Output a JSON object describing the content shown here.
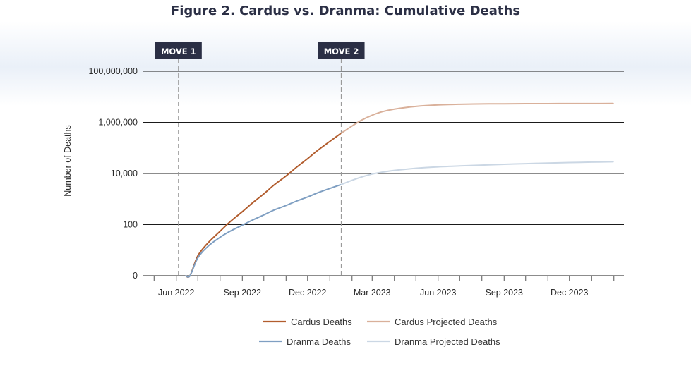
{
  "title": "Figure 2. Cardus vs. Dranma: Cumulative Deaths",
  "colors": {
    "cardus": "#b25d2e",
    "cardus_projected": "#d9b09a",
    "dranma": "#7f9fc2",
    "dranma_projected": "#cbd7e4",
    "annotation_bg": "#2b2f45",
    "gridline": "#1a1a1a",
    "vline": "#9a9a9a"
  },
  "chart_data": {
    "type": "line",
    "title": "Figure 2. Cardus vs. Dranma: Cumulative Deaths",
    "xlabel": "",
    "ylabel": "Number of Deaths",
    "y_scale": "log",
    "y_ticks": [
      {
        "value": 0,
        "label": "0"
      },
      {
        "value": 100,
        "label": "100"
      },
      {
        "value": 10000,
        "label": "10,000"
      },
      {
        "value": 1000000,
        "label": "1,000,000"
      },
      {
        "value": 100000000,
        "label": "100,000,000"
      }
    ],
    "xlim": [
      "2022-04-15",
      "2024-02-15"
    ],
    "x_minor_ticks": [
      "2022-05-01",
      "2022-06-01",
      "2022-07-01",
      "2022-08-01",
      "2022-09-01",
      "2022-10-01",
      "2022-11-01",
      "2022-12-01",
      "2023-01-01",
      "2023-02-01",
      "2023-03-01",
      "2023-04-01",
      "2023-05-01",
      "2023-06-01",
      "2023-07-01",
      "2023-08-01",
      "2023-09-01",
      "2023-10-01",
      "2023-11-01",
      "2023-12-01",
      "2024-01-01",
      "2024-02-01"
    ],
    "x_ticks": [
      {
        "date": "2022-06-01",
        "label": "Jun 2022"
      },
      {
        "date": "2022-09-01",
        "label": "Sep 2022"
      },
      {
        "date": "2022-12-01",
        "label": "Dec 2022"
      },
      {
        "date": "2023-03-01",
        "label": "Mar 2023"
      },
      {
        "date": "2023-06-01",
        "label": "Jun 2023"
      },
      {
        "date": "2023-09-01",
        "label": "Sep 2023"
      },
      {
        "date": "2023-12-01",
        "label": "Dec 2023"
      }
    ],
    "grid": "horizontal",
    "annotations": [
      {
        "label": "MOVE 1",
        "date": "2022-06-04"
      },
      {
        "label": "MOVE 2",
        "date": "2023-01-17"
      }
    ],
    "legend": {
      "position": "bottom",
      "items": [
        {
          "series": 0,
          "label": "Cardus Deaths"
        },
        {
          "series": 1,
          "label": "Cardus Projected Deaths"
        },
        {
          "series": 2,
          "label": "Dranma Deaths"
        },
        {
          "series": 3,
          "label": "Dranma Projected Deaths"
        }
      ]
    },
    "series": [
      {
        "name": "Cardus Deaths",
        "color": "#b25d2e",
        "x": [
          "2022-06-14",
          "2022-06-20",
          "2022-07-01",
          "2022-07-15",
          "2022-08-01",
          "2022-08-15",
          "2022-09-01",
          "2022-09-15",
          "2022-10-01",
          "2022-10-15",
          "2022-11-01",
          "2022-11-15",
          "2022-12-01",
          "2022-12-15",
          "2023-01-01",
          "2023-01-17"
        ],
        "y": [
          0.05,
          1,
          6,
          19,
          55,
          130,
          320,
          700,
          1600,
          3500,
          8000,
          17000,
          38000,
          80000,
          180000,
          380000
        ]
      },
      {
        "name": "Cardus Projected Deaths",
        "color": "#d9b09a",
        "x": [
          "2023-01-17",
          "2023-02-01",
          "2023-02-15",
          "2023-03-01",
          "2023-03-15",
          "2023-04-01",
          "2023-05-01",
          "2023-06-01",
          "2023-07-01",
          "2023-08-01",
          "2023-09-01",
          "2023-10-01",
          "2023-11-01",
          "2023-12-01",
          "2024-01-01",
          "2024-01-31"
        ],
        "y": [
          380000,
          720000,
          1250000,
          1900000,
          2600000,
          3300000,
          4200000,
          4800000,
          5100000,
          5250000,
          5320000,
          5370000,
          5400000,
          5420000,
          5440000,
          5450000
        ]
      },
      {
        "name": "Dranma Deaths",
        "color": "#7f9fc2",
        "x": [
          "2022-06-14",
          "2022-06-20",
          "2022-07-01",
          "2022-07-15",
          "2022-08-01",
          "2022-08-15",
          "2022-09-01",
          "2022-09-15",
          "2022-10-01",
          "2022-10-15",
          "2022-11-01",
          "2022-11-15",
          "2022-12-01",
          "2022-12-15",
          "2023-01-01",
          "2023-01-17"
        ],
        "y": [
          0.05,
          1,
          5,
          14,
          32,
          55,
          95,
          150,
          240,
          370,
          560,
          820,
          1200,
          1750,
          2600,
          3700
        ]
      },
      {
        "name": "Dranma Projected Deaths",
        "color": "#cbd7e4",
        "x": [
          "2023-01-17",
          "2023-02-01",
          "2023-02-15",
          "2023-03-01",
          "2023-03-15",
          "2023-04-01",
          "2023-05-01",
          "2023-06-01",
          "2023-07-01",
          "2023-08-01",
          "2023-09-01",
          "2023-10-01",
          "2023-11-01",
          "2023-12-01",
          "2024-01-01",
          "2024-01-31"
        ],
        "y": [
          3700,
          5400,
          7400,
          9500,
          11300,
          13200,
          16000,
          18200,
          19800,
          21300,
          22800,
          24200,
          25500,
          26700,
          27800,
          28700
        ]
      }
    ]
  }
}
